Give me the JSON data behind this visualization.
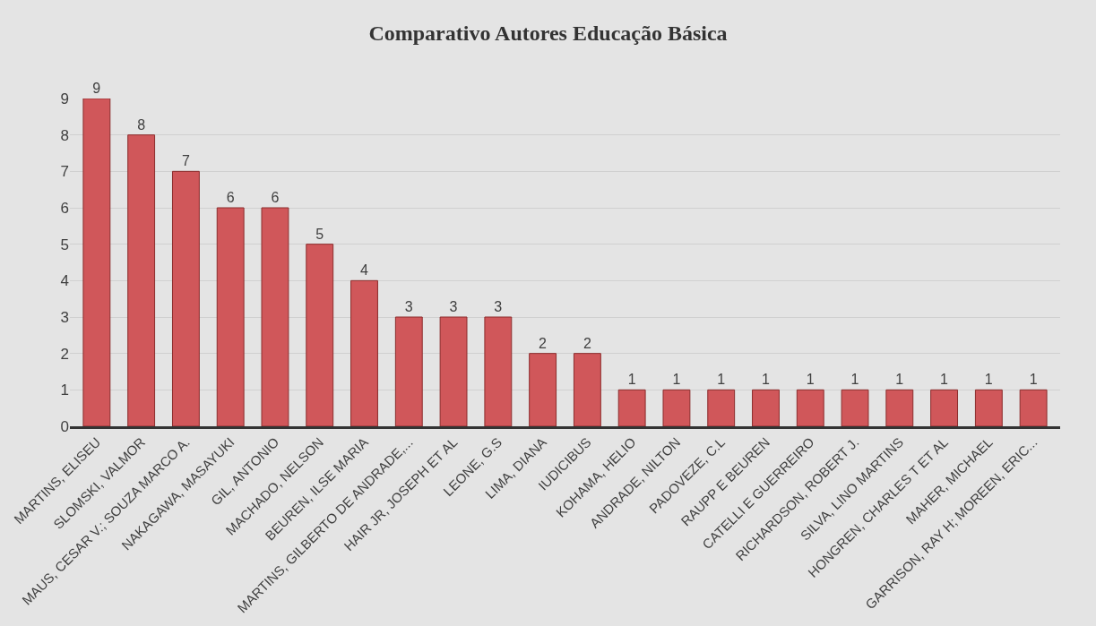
{
  "chart_data": {
    "type": "bar",
    "title": "Comparativo Autores Educação Básica",
    "categories": [
      "MARTINS, ELISEU",
      "SLOMSKI, VALMOR",
      "MAUS, CESAR V.; SOUZA MARCO A.",
      "NAKAGAWA, MASAYUKI",
      "GIL, ANTONIO",
      "MACHADO, NELSON",
      "BEUREN, ILSE MARIA",
      "MARTINS, GILBERTO DE ANDRADE,...",
      "HAIR JR, JOSEPH ET AL",
      "LEONE, G.S",
      "LIMA, DIANA",
      "IUDICIBUS",
      "KOHAMA, HELIO",
      "ANDRADE, NILTON",
      "PADOVEZE, C.L",
      "RAUPP E BEUREN",
      "CATELLI E GUERREIRO",
      "RICHARDSON, ROBERT J.",
      "SILVA, LINO MARTINS",
      "HONGREN, CHARLES T ET AL",
      "MAHER, MICHAEL",
      "GARRISON, RAY H; MOREEN, ERIC..."
    ],
    "values": [
      9,
      8,
      7,
      6,
      6,
      5,
      4,
      3,
      3,
      3,
      2,
      2,
      1,
      1,
      1,
      1,
      1,
      1,
      1,
      1,
      1,
      1
    ],
    "color": "#d0575a",
    "ylim": [
      0,
      9
    ],
    "yticks": [
      0,
      1,
      2,
      3,
      4,
      5,
      6,
      7,
      8,
      9
    ],
    "grid": "y",
    "data_labels": true
  }
}
